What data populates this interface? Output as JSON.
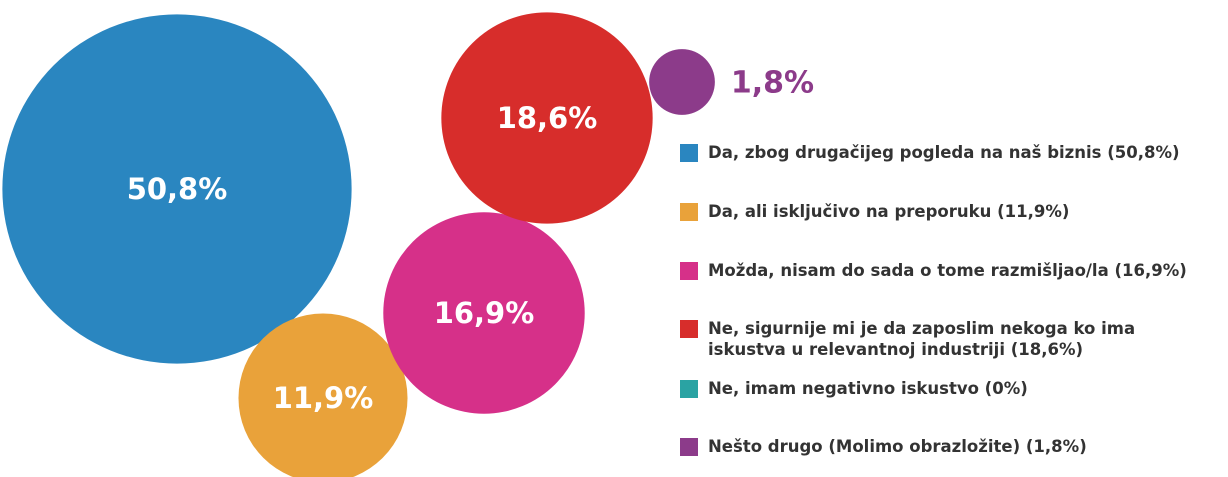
{
  "chart_data": {
    "type": "bubble",
    "categories": [
      "Da, zbog drugačijeg pogleda na naš biznis (50,8%)",
      "Da, ali isključivo na preporuku (11,9%)",
      "Možda, nisam do sada o tome razmišljao/la (16,9%)",
      "Ne, sigurnije mi je da zaposlim nekoga ko ima iskustva u relevantnoj industriji (18,6%)",
      "Ne, imam negativno iskustvo (0%)",
      "Nešto drugo (Molimo obrazložite) (1,8%)"
    ],
    "values": [
      50.8,
      11.9,
      16.9,
      18.6,
      0,
      1.8
    ],
    "value_labels": [
      "50,8%",
      "11,9%",
      "16,9%",
      "18,6%",
      null,
      "1,8%"
    ],
    "colors": [
      "#2a86c0",
      "#e9a23a",
      "#d63089",
      "#d72d2b",
      "#2aa3a3",
      "#8c3b8a"
    ]
  }
}
